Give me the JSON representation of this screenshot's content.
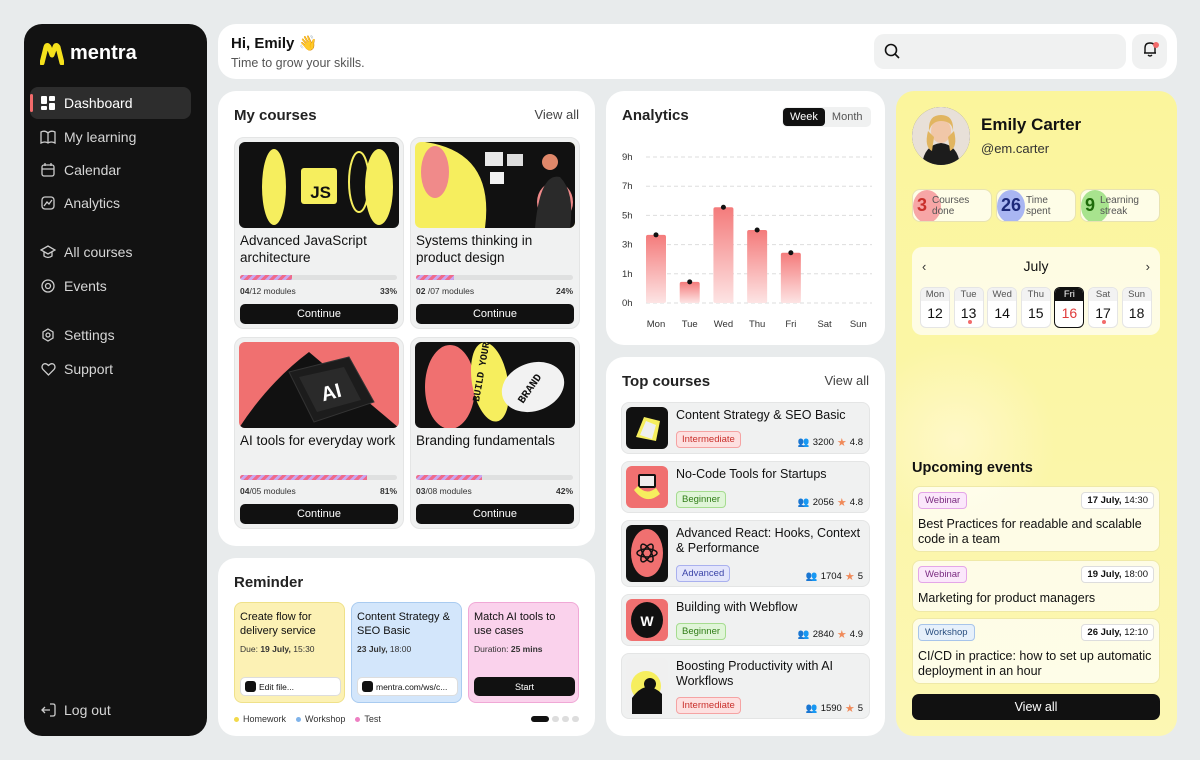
{
  "brand": {
    "name": "mentra",
    "accent": "#f5e11c"
  },
  "sidebar": {
    "items": [
      {
        "label": "Dashboard",
        "icon": "dashboard-icon"
      },
      {
        "label": "My learning",
        "icon": "book-icon"
      },
      {
        "label": "Calendar",
        "icon": "calendar-icon"
      },
      {
        "label": "Analytics",
        "icon": "analytics-icon"
      },
      {
        "label": "All courses",
        "icon": "graduation-cap-icon"
      },
      {
        "label": "Events",
        "icon": "events-icon"
      },
      {
        "label": "Settings",
        "icon": "gear-icon"
      },
      {
        "label": "Support",
        "icon": "heart-icon"
      }
    ],
    "logout": "Log out"
  },
  "header": {
    "greeting": "Hi, Emily 👋",
    "subtitle": "Time to grow your skills.",
    "search_placeholder": ""
  },
  "my_courses": {
    "title": "My courses",
    "view_all": "View all",
    "button": "Continue",
    "courses": [
      {
        "name": "Advanced JavaScript architecture",
        "done": "04",
        "total": "/12 modules",
        "pct": "33%",
        "progress": 0.33
      },
      {
        "name": "Systems thinking in product design",
        "done": "02",
        "total": " /07 modules",
        "pct": "24%",
        "progress": 0.24
      },
      {
        "name": "AI tools for everyday work",
        "done": "04",
        "total": "/05 modules",
        "pct": "81%",
        "progress": 0.81
      },
      {
        "name": "Branding fundamentals",
        "done": "03",
        "total": "/08 modules",
        "pct": "42%",
        "progress": 0.42
      }
    ],
    "thumb_text": {
      "js": "JS",
      "ai": "AI",
      "build": "BUILD YOUR",
      "brand": "BRAND"
    }
  },
  "reminder": {
    "title": "Reminder",
    "cards": [
      {
        "title": "Create flow for delivery service",
        "detail_prefix": "Due: ",
        "detail_strong": "19 July,",
        "detail_rest": " 15:30",
        "action": "Edit file...",
        "color": "#fcf1b4"
      },
      {
        "title": "Content Strategy & SEO Basic",
        "detail_prefix": "",
        "detail_strong": "23 July,",
        "detail_rest": " 18:00",
        "action": "mentra.com/ws/c...",
        "color": "#d3e6fb"
      },
      {
        "title": "Match AI tools to use cases",
        "detail_prefix": "Duration: ",
        "detail_strong": "25 mins",
        "detail_rest": "",
        "action": "Start",
        "color": "#fad2ec"
      }
    ],
    "legend": [
      {
        "label": "Homework",
        "color": "#f2d94a"
      },
      {
        "label": "Workshop",
        "color": "#7fb3ea"
      },
      {
        "label": "Test",
        "color": "#ee7fc2"
      }
    ]
  },
  "analytics": {
    "title": "Analytics",
    "tabs": [
      "Week",
      "Month"
    ],
    "active_tab": "Week"
  },
  "chart_data": {
    "type": "bar",
    "categories": [
      "Mon",
      "Tue",
      "Wed",
      "Thu",
      "Fri",
      "Sat",
      "Sun"
    ],
    "values": [
      4.2,
      1.3,
      5.9,
      4.5,
      3.1,
      0,
      0
    ],
    "yticks": [
      "0h",
      "1h",
      "3h",
      "5h",
      "7h",
      "9h"
    ],
    "ylim": [
      0,
      10
    ],
    "grid": true,
    "title": "",
    "xlabel": "",
    "ylabel": ""
  },
  "top_courses": {
    "title": "Top courses",
    "view_all": "View all",
    "items": [
      {
        "name": "Content Strategy & SEO Basic",
        "level": "Intermediate",
        "students": "3200",
        "rating": "4.8"
      },
      {
        "name": "No-Code Tools for Startups",
        "level": "Beginner",
        "students": "2056",
        "rating": "4.8"
      },
      {
        "name": "Advanced React: Hooks, Context & Performance",
        "level": "Advanced",
        "students": "1704",
        "rating": "5"
      },
      {
        "name": "Building with Webflow",
        "level": "Beginner",
        "students": "2840",
        "rating": "4.9"
      },
      {
        "name": "Boosting Productivity with AI Workflows",
        "level": "Intermediate",
        "students": "1590",
        "rating": "5"
      }
    ]
  },
  "profile": {
    "name": "Emily Carter",
    "handle": "@em.carter",
    "stats": [
      {
        "value": "3",
        "label": "Courses done",
        "color": "#f7a6a6"
      },
      {
        "value": "26",
        "label": "Time spent",
        "color": "#a9b6f2"
      },
      {
        "value": "9",
        "label": "Learning streak",
        "color": "#a8e38e"
      }
    ],
    "calendar": {
      "month": "July",
      "days": [
        {
          "name": "Mon",
          "date": "12",
          "mark": false
        },
        {
          "name": "Tue",
          "date": "13",
          "mark": true
        },
        {
          "name": "Wed",
          "date": "14",
          "mark": false
        },
        {
          "name": "Thu",
          "date": "15",
          "mark": false
        },
        {
          "name": "Fri",
          "date": "16",
          "mark": false
        },
        {
          "name": "Sat",
          "date": "17",
          "mark": true
        },
        {
          "name": "Sun",
          "date": "18",
          "mark": false
        }
      ],
      "selected": "Fri"
    }
  },
  "events": {
    "title": "Upcoming events",
    "items": [
      {
        "type": "Webinar",
        "date_strong": "17 July,",
        "time": " 14:30",
        "name": "Best Practices for readable and scalable code in a team"
      },
      {
        "type": "Webinar",
        "date_strong": "19 July,",
        "time": " 18:00",
        "name": "Marketing for product managers"
      },
      {
        "type": "Workshop",
        "date_strong": "26 July,",
        "time": " 12:10",
        "name": "CI/CD in practice: how to set up automatic deployment in an hour"
      }
    ],
    "view_all": "View all"
  }
}
